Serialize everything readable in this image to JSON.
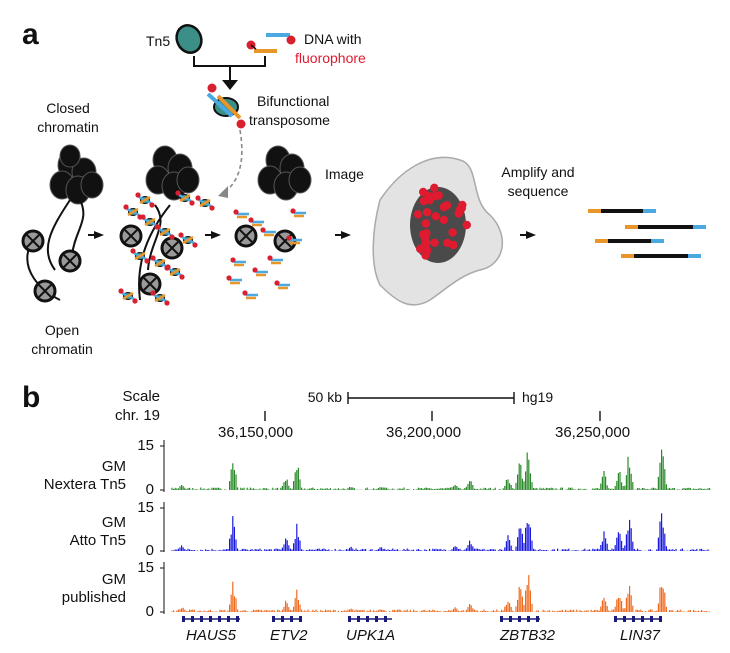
{
  "panel_a": {
    "label": "a",
    "tn5": "Tn5",
    "dna_with": "DNA with",
    "fluorophore": "fluorophore",
    "bifunctional": "Bifunctional",
    "transposome": "transposome",
    "closed1": "Closed",
    "closed2": "chromatin",
    "open1": "Open",
    "open2": "chromatin",
    "image": "Image",
    "amplify": "Amplify and",
    "sequence": "sequence"
  },
  "panel_b": {
    "label": "b",
    "scale_label": "Scale",
    "chr_label": "chr. 19",
    "scale_text": "50 kb",
    "assembly": "hg19",
    "coords": [
      "36,150,000",
      "36,200,000",
      "36,250,000"
    ],
    "genes": [
      "HAUS5",
      "ETV2",
      "UPK1A",
      "ZBTB32",
      "LIN37"
    ],
    "tracks": [
      {
        "line1": "GM",
        "line2": "Nextera Tn5",
        "color": "#2a8a2a",
        "ymax": "15",
        "ymin": "0"
      },
      {
        "line1": "GM",
        "line2": "Atto Tn5",
        "color": "#1a1adc",
        "ymax": "15",
        "ymin": "0"
      },
      {
        "line1": "GM",
        "line2": "published",
        "color": "#f06a1e",
        "ymax": "15",
        "ymin": "0"
      }
    ]
  }
}
